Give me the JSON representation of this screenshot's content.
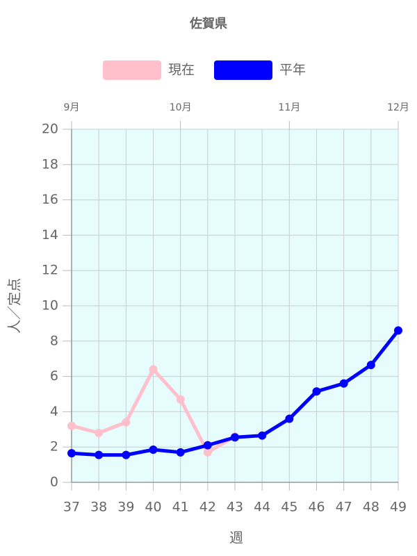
{
  "chart_data": {
    "type": "line",
    "title": "佐賀県",
    "x_label": "週",
    "y_label": "人／定点",
    "x": [
      37,
      38,
      39,
      40,
      41,
      42,
      43,
      44,
      45,
      46,
      47,
      48,
      49
    ],
    "series": [
      {
        "name": "現在",
        "color": "#ffc0cb",
        "values": [
          3.2,
          2.8,
          3.4,
          6.4,
          4.7,
          1.7,
          2.6,
          null,
          null,
          null,
          null,
          null,
          null
        ]
      },
      {
        "name": "平年",
        "color": "#0000ff",
        "values": [
          1.65,
          1.55,
          1.55,
          1.85,
          1.7,
          2.1,
          2.55,
          2.65,
          3.6,
          5.15,
          5.6,
          6.65,
          8.6
        ]
      }
    ],
    "xlim": [
      37,
      49
    ],
    "xticks": [
      37,
      38,
      39,
      40,
      41,
      42,
      43,
      44,
      45,
      46,
      47,
      48,
      49
    ],
    "x2ticks": [
      {
        "value": 37,
        "label": "9月"
      },
      {
        "value": 41,
        "label": "10月"
      },
      {
        "value": 45,
        "label": "11月"
      },
      {
        "value": 49,
        "label": "12月"
      }
    ],
    "ylim": [
      0,
      20
    ],
    "yticks": [
      0,
      2,
      4,
      6,
      8,
      10,
      12,
      14,
      16,
      18,
      20
    ],
    "grid": true,
    "plot_background": "#e6fcfd",
    "legend": "top"
  }
}
